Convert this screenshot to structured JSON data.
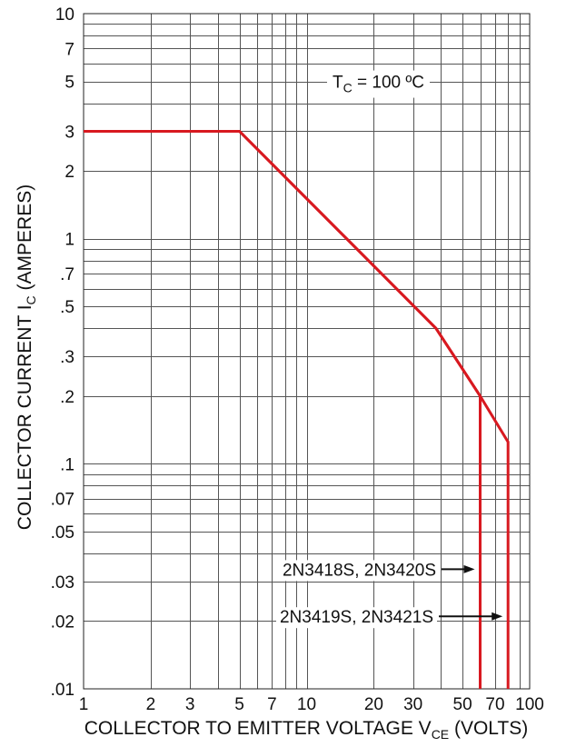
{
  "chart_data": {
    "type": "line",
    "x_scale": "log",
    "y_scale": "log",
    "xlim": [
      1,
      100
    ],
    "ylim": [
      0.01,
      10
    ],
    "grid": true,
    "x_ticks": [
      {
        "v": 1,
        "label": "1"
      },
      {
        "v": 2,
        "label": "2"
      },
      {
        "v": 3,
        "label": "3"
      },
      {
        "v": 5,
        "label": "5"
      },
      {
        "v": 7,
        "label": "7"
      },
      {
        "v": 10,
        "label": "10"
      },
      {
        "v": 20,
        "label": "20"
      },
      {
        "v": 30,
        "label": "30"
      },
      {
        "v": 50,
        "label": "50"
      },
      {
        "v": 70,
        "label": "70"
      },
      {
        "v": 100,
        "label": "100"
      }
    ],
    "y_ticks": [
      {
        "v": 10,
        "label": "10"
      },
      {
        "v": 7,
        "label": "7"
      },
      {
        "v": 5,
        "label": "5"
      },
      {
        "v": 3,
        "label": "3"
      },
      {
        "v": 2,
        "label": "2"
      },
      {
        "v": 1,
        "label": "1"
      },
      {
        "v": 0.7,
        "label": ".7"
      },
      {
        "v": 0.5,
        "label": ".5"
      },
      {
        "v": 0.3,
        "label": ".3"
      },
      {
        "v": 0.2,
        "label": ".2"
      },
      {
        "v": 0.1,
        "label": ".1"
      },
      {
        "v": 0.07,
        "label": ".07"
      },
      {
        "v": 0.05,
        "label": ".05"
      },
      {
        "v": 0.03,
        "label": ".03"
      },
      {
        "v": 0.02,
        "label": ".02"
      },
      {
        "v": 0.01,
        "label": ".01"
      }
    ],
    "xlabel": {
      "main": "COLLECTOR TO EMITTER VOLTAGE V",
      "sub": "CE",
      "tail": " (VOLTS)"
    },
    "ylabel": {
      "main": "COLLECTOR CURRENT I",
      "sub": "C",
      "tail": " (AMPERES)"
    },
    "annotation": {
      "main": "T",
      "sub": "C",
      "tail": " = 100 ºC"
    },
    "series": [
      {
        "name": "2N3418S, 2N3420S",
        "color": "#d81920",
        "points": [
          [
            1,
            3
          ],
          [
            5,
            3
          ],
          [
            38,
            0.4
          ],
          [
            60,
            0.2
          ],
          [
            60,
            0.01
          ]
        ]
      },
      {
        "name": "2N3419S, 2N3421S",
        "color": "#d81920",
        "points": [
          [
            1,
            3
          ],
          [
            5,
            3
          ],
          [
            38,
            0.4
          ],
          [
            60,
            0.2
          ],
          [
            80,
            0.125
          ],
          [
            80,
            0.01
          ]
        ]
      }
    ]
  }
}
